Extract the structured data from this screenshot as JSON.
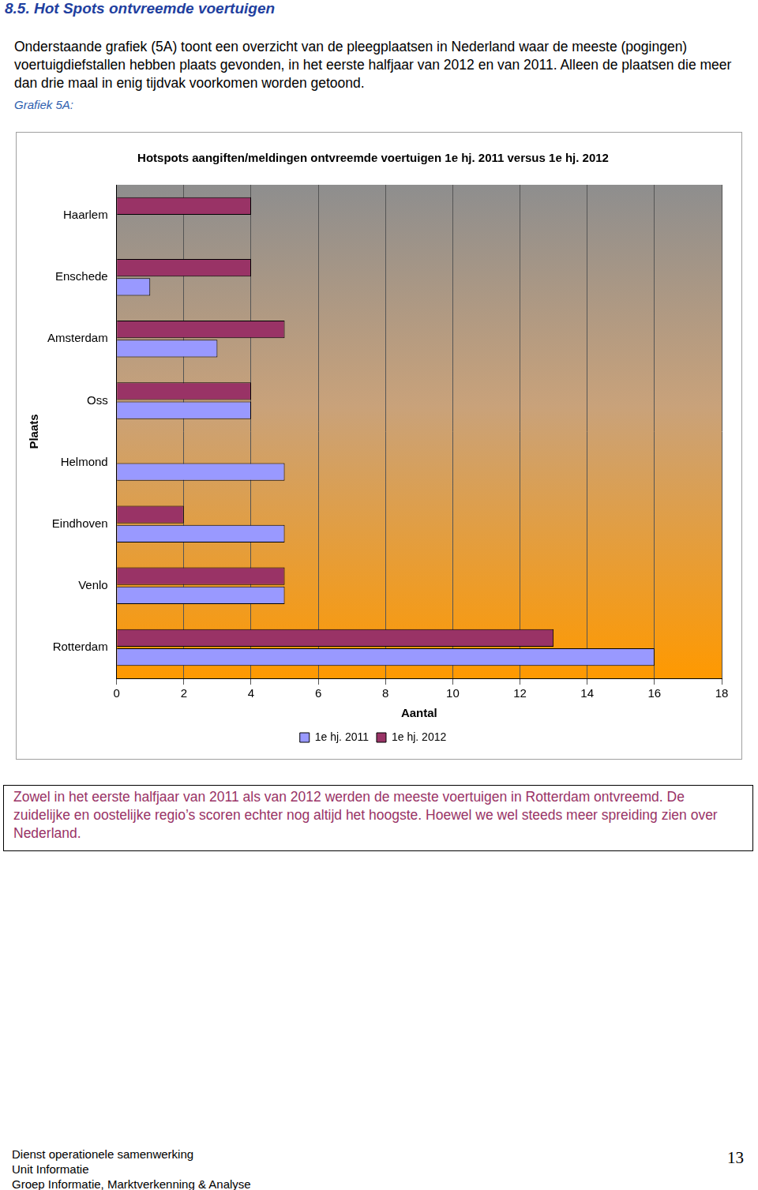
{
  "heading": "8.5. Hot Spots ontvreemde voertuigen",
  "intro": "Onderstaande grafiek (5A) toont een overzicht van de pleegplaatsen in Nederland waar de meeste (pogingen) voertuigdiefstallen hebben plaats gevonden, in het eerste halfjaar van 2012 en van 2011. Alleen de plaatsen die meer dan drie maal in enig tijdvak voorkomen worden getoond.",
  "figure_label": "Grafiek 5A:",
  "chart_data": {
    "type": "bar",
    "title": "Hotspots aangiften/meldingen ontvreemde voertuigen 1e hj. 2011 versus 1e hj. 2012",
    "x_label": "Aantal",
    "y_label": "Plaats",
    "orientation": "horizontal",
    "grid": true,
    "legend": "bottom",
    "categories": [
      "Haarlem",
      "Enschede",
      "Amsterdam",
      "Oss",
      "Helmond",
      "Eindhoven",
      "Venlo",
      "Rotterdam"
    ],
    "series": [
      {
        "name": "1e hj. 2011",
        "color": "#9999ff",
        "values": [
          0,
          1,
          3,
          4,
          5,
          5,
          5,
          16
        ]
      },
      {
        "name": "1e hj. 2012",
        "color": "#993366",
        "values": [
          4,
          4,
          5,
          4,
          0,
          2,
          5,
          13
        ]
      }
    ],
    "xlim": [
      0,
      18
    ],
    "xticks": [
      0,
      2,
      4,
      6,
      8,
      10,
      12,
      14,
      16,
      18
    ]
  },
  "conclusion": "Zowel in het eerste halfjaar van 2011 als van 2012 werden de meeste voertuigen in Rotterdam ontvreemd. De zuidelijke en oostelijke regio’s scoren echter nog altijd het hoogste. Hoewel we wel steeds meer spreiding zien over Nederland.",
  "footer": {
    "lines": [
      "Dienst operationele samenwerking",
      "Unit Informatie",
      "Groep Informatie, Marktverkenning & Analyse"
    ],
    "page": "13"
  }
}
